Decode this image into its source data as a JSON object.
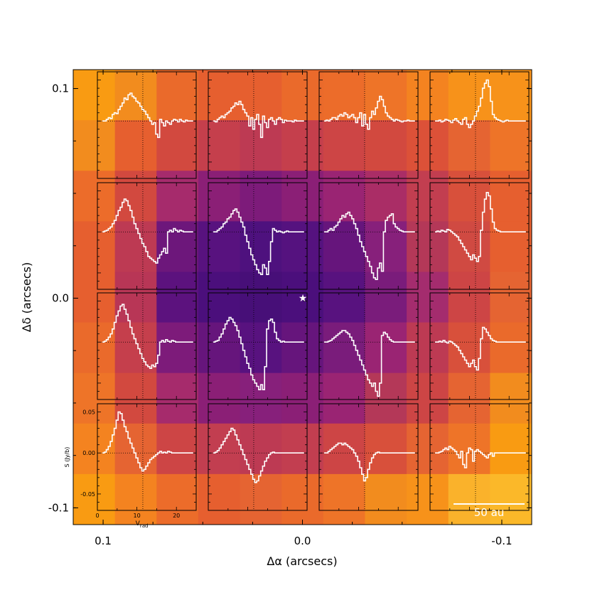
{
  "figure": {
    "xlabel": "Δα (arcsecs)",
    "ylabel": "Δδ (arcsecs)",
    "x_ticks": [
      {
        "value": 0.1,
        "label": "0.1"
      },
      {
        "value": 0.0,
        "label": "0.0"
      },
      {
        "value": -0.1,
        "label": "-0.1"
      }
    ],
    "y_ticks": [
      {
        "value": 0.1,
        "label": "0.1"
      },
      {
        "value": 0.0,
        "label": "0.0"
      },
      {
        "value": -0.1,
        "label": "-0.1"
      }
    ],
    "scale_bar_label": "50 au",
    "star_marker": "★"
  },
  "chart_data": {
    "type": "heatmap",
    "title": "",
    "xlabel": "Δα (arcsecs)",
    "ylabel": "Δδ (arcsecs)",
    "xlim": [
      0.115,
      -0.115
    ],
    "ylim": [
      -0.108,
      0.109
    ],
    "colormap": "inferno",
    "heatmap_colors": [
      [
        "#f99b12",
        "#f28c1e",
        "#ea6a2b",
        "#e65f2f",
        "#e65f2f",
        "#ea6a2b",
        "#ec6c2a",
        "#ee7428",
        "#f48320",
        "#f7921a",
        "#f7921a"
      ],
      [
        "#f28c1e",
        "#e65f2f",
        "#d2493f",
        "#c53f4c",
        "#bd3a53",
        "#c53f4c",
        "#cd4545",
        "#d2493f",
        "#dc5138",
        "#e56432",
        "#ee7428"
      ],
      [
        "#ec6c2a",
        "#d2493f",
        "#a62b6c",
        "#8b1f76",
        "#7d1b7a",
        "#8b1f76",
        "#9a2473",
        "#aa2d66",
        "#c23e50",
        "#d8503b",
        "#e65f2f"
      ],
      [
        "#e65f2f",
        "#bd3a53",
        "#6d177b",
        "#58127f",
        "#4e117e",
        "#55127f",
        "#66157c",
        "#87207b",
        "#b43858",
        "#d04a42",
        "#e65f2f"
      ],
      [
        "#e65f2f",
        "#b83656",
        "#5c127e",
        "#4b0f7c",
        "#470f78",
        "#4b0f7c",
        "#58127f",
        "#7a1c7b",
        "#a42c6e",
        "#cd4545",
        "#e56432"
      ],
      [
        "#ea6a2b",
        "#c53f4c",
        "#7d1b7a",
        "#66157c",
        "#58127f",
        "#66157c",
        "#7a1c7b",
        "#9a2473",
        "#bd3a53",
        "#d8503b",
        "#ea6a2b"
      ],
      [
        "#ee7428",
        "#d2493f",
        "#a62b6c",
        "#8b1f76",
        "#87207b",
        "#8b1f76",
        "#9a2473",
        "#b43858",
        "#cd4545",
        "#e56432",
        "#f28c1e"
      ],
      [
        "#f48320",
        "#e56432",
        "#cd4545",
        "#c23e50",
        "#bd3a53",
        "#c23e50",
        "#cd4545",
        "#d8503b",
        "#e56432",
        "#ee7428",
        "#f99b12"
      ],
      [
        "#f99b12",
        "#f48320",
        "#ec6c2a",
        "#e65f2f",
        "#e56432",
        "#ea6a2b",
        "#ee7428",
        "#f28c1e",
        "#f7921a",
        "#fab22b",
        "#fbb829"
      ]
    ],
    "star_position": [
      0.0,
      0.0
    ],
    "scale_bar": "50 au",
    "inset_spectra": {
      "description_type": "grid of spectra (step)",
      "rows": 4,
      "cols": 4,
      "inset_xlabel": "V$_{rad}$",
      "inset_ylabel": "S (Jy/b)",
      "inset_xlim": [
        0,
        25
      ],
      "inset_ylim": [
        -0.07,
        0.06
      ],
      "inset_xticks": [
        0,
        10,
        20
      ],
      "inset_yticks": [
        0.05,
        0.0,
        -0.05
      ],
      "inset_ytick_labels": [
        "0.05",
        "0.00",
        "-0.05"
      ],
      "inset_xtick_labels": [
        "0",
        "10",
        "20"
      ],
      "systemic_velocity": 11.5,
      "velocity_channels": [
        1.5,
        2.0,
        2.5,
        3.0,
        3.5,
        4.0,
        4.5,
        5.0,
        5.5,
        6.0,
        6.5,
        7.0,
        7.5,
        8.0,
        8.5,
        9.0,
        9.5,
        10.0,
        10.5,
        11.0,
        11.5,
        12.0,
        12.5,
        13.0,
        13.5,
        14.0,
        14.5,
        15.0,
        15.5,
        16.0,
        16.5,
        17.0,
        17.5,
        18.0,
        18.5,
        19.0,
        19.5,
        20.0,
        20.5,
        21.0,
        21.5,
        22.0,
        22.5,
        23.0,
        23.5,
        24.0
      ],
      "spectra": [
        [
          [
            0.0,
            0.0,
            0.002,
            0.004,
            0.003,
            0.008,
            0.01,
            0.009,
            0.014,
            0.018,
            0.022,
            0.028,
            0.026,
            0.032,
            0.034,
            0.03,
            0.028,
            0.024,
            0.022,
            0.018,
            0.014,
            0.012,
            0.008,
            0.004,
            0.0,
            -0.004,
            -0.002,
            -0.016,
            -0.02,
            0.002,
            -0.002,
            -0.006,
            0.0,
            -0.002,
            -0.004,
            0.0,
            0.002,
            0.001,
            -0.001,
            0.002,
            0.0,
            -0.001,
            0.001,
            0.0,
            0.0,
            0.0
          ],
          [
            0.0,
            -0.001,
            0.002,
            0.004,
            0.006,
            0.004,
            0.008,
            0.01,
            0.012,
            0.016,
            0.018,
            0.022,
            0.02,
            0.024,
            0.02,
            0.014,
            0.01,
            0.006,
            -0.006,
            0.004,
            -0.01,
            0.002,
            0.008,
            -0.004,
            -0.02,
            0.006,
            -0.002,
            -0.008,
            0.002,
            0.004,
            0.0,
            -0.004,
            0.002,
            0.004,
            0.002,
            -0.002,
            0.001,
            0.0,
            0.0,
            0.0,
            -0.001,
            0.001,
            0.0,
            0.0,
            0.0,
            0.0
          ],
          [
            0.0,
            0.001,
            0.0,
            0.002,
            0.004,
            0.004,
            0.002,
            0.006,
            0.008,
            0.006,
            0.01,
            0.008,
            0.004,
            0.006,
            0.008,
            0.004,
            -0.002,
            0.004,
            0.01,
            -0.006,
            0.008,
            -0.004,
            -0.01,
            0.004,
            0.012,
            0.008,
            0.016,
            0.024,
            0.03,
            0.026,
            0.018,
            0.01,
            0.006,
            0.004,
            0.002,
            0.0,
            0.002,
            0.001,
            0.0,
            -0.001,
            0.0,
            0.0,
            0.001,
            0.0,
            0.0,
            0.0
          ],
          [
            0.0,
            0.0,
            0.001,
            -0.001,
            0.0,
            0.002,
            0.001,
            0.0,
            -0.002,
            0.001,
            0.003,
            0.0,
            -0.002,
            -0.004,
            0.002,
            0.004,
            -0.004,
            -0.008,
            -0.004,
            0.0,
            0.006,
            0.012,
            0.018,
            0.028,
            0.04,
            0.046,
            0.05,
            0.042,
            0.024,
            0.008,
            0.004,
            0.002,
            0.001,
            0.0,
            -0.001,
            0.0,
            0.001,
            0.0,
            0.0,
            0.0,
            0.0,
            0.0,
            0.0,
            0.0,
            0.0,
            0.0
          ]
        ],
        [
          [
            0.0,
            0.001,
            0.002,
            0.004,
            0.006,
            0.01,
            0.014,
            0.02,
            0.026,
            0.03,
            0.036,
            0.04,
            0.038,
            0.032,
            0.026,
            0.018,
            0.01,
            0.004,
            -0.002,
            -0.008,
            -0.014,
            -0.018,
            -0.024,
            -0.03,
            -0.032,
            -0.034,
            -0.036,
            -0.038,
            -0.032,
            -0.028,
            -0.024,
            -0.02,
            -0.026,
            0.0,
            0.002,
            0.0,
            0.004,
            0.002,
            0.0,
            0.002,
            0.001,
            0.0,
            0.0,
            0.0,
            0.0,
            0.0
          ],
          [
            0.0,
            0.0,
            0.002,
            0.004,
            0.006,
            0.01,
            0.012,
            0.016,
            0.018,
            0.022,
            0.026,
            0.028,
            0.024,
            0.018,
            0.012,
            0.006,
            -0.004,
            -0.012,
            -0.02,
            -0.028,
            -0.034,
            -0.04,
            -0.046,
            -0.05,
            -0.052,
            -0.04,
            -0.044,
            -0.052,
            -0.036,
            -0.012,
            0.004,
            0.002,
            0.0,
            0.001,
            0.0,
            -0.001,
            0.0,
            0.001,
            0.0,
            0.0,
            0.0,
            0.0,
            0.0,
            0.0,
            0.0,
            0.0
          ],
          [
            0.0,
            0.0,
            0.002,
            0.004,
            0.002,
            0.006,
            0.008,
            0.012,
            0.016,
            0.02,
            0.018,
            0.022,
            0.024,
            0.02,
            0.016,
            0.01,
            0.004,
            -0.004,
            -0.012,
            -0.018,
            -0.024,
            -0.03,
            -0.036,
            -0.042,
            -0.05,
            -0.056,
            -0.058,
            -0.044,
            -0.038,
            -0.048,
            0.0,
            0.014,
            0.018,
            0.02,
            0.022,
            0.01,
            0.006,
            0.004,
            0.002,
            0.001,
            0.0,
            0.0,
            0.0,
            0.0,
            0.0,
            0.0
          ],
          [
            0.0,
            0.001,
            0.0,
            0.002,
            0.001,
            0.0,
            0.003,
            0.002,
            0.0,
            -0.002,
            -0.004,
            -0.006,
            -0.01,
            -0.014,
            -0.018,
            -0.022,
            -0.026,
            -0.03,
            -0.034,
            -0.028,
            -0.032,
            -0.036,
            -0.03,
            0.002,
            0.024,
            0.04,
            0.048,
            0.044,
            0.028,
            0.012,
            0.004,
            0.002,
            0.001,
            0.0,
            0.0,
            0.0,
            0.0,
            0.0,
            0.0,
            0.0,
            0.0,
            0.0,
            0.0,
            0.0,
            0.0,
            0.0
          ]
        ],
        [
          [
            0.0,
            0.001,
            0.003,
            0.006,
            0.01,
            0.016,
            0.024,
            0.032,
            0.038,
            0.044,
            0.046,
            0.04,
            0.034,
            0.026,
            0.018,
            0.01,
            0.004,
            -0.002,
            -0.008,
            -0.014,
            -0.02,
            -0.024,
            -0.028,
            -0.03,
            -0.032,
            -0.028,
            -0.03,
            -0.026,
            -0.016,
            0.0,
            0.002,
            0.0,
            0.003,
            0.001,
            0.0,
            0.002,
            0.001,
            0.0,
            0.0,
            0.0,
            0.0,
            0.0,
            0.0,
            0.0,
            0.0,
            0.0
          ],
          [
            0.0,
            0.001,
            0.002,
            0.006,
            0.01,
            0.016,
            0.022,
            0.026,
            0.03,
            0.028,
            0.024,
            0.02,
            0.014,
            0.006,
            -0.002,
            -0.01,
            -0.018,
            -0.026,
            -0.032,
            -0.04,
            -0.046,
            -0.05,
            -0.054,
            -0.058,
            -0.052,
            -0.058,
            -0.03,
            0.016,
            0.026,
            0.028,
            0.024,
            0.012,
            0.004,
            0.002,
            0.0,
            0.001,
            0.0,
            0.0,
            0.0,
            0.0,
            0.0,
            0.0,
            0.0,
            0.0,
            0.0,
            0.0
          ],
          [
            0.0,
            0.0,
            0.001,
            0.002,
            0.004,
            0.006,
            0.008,
            0.01,
            0.012,
            0.014,
            0.014,
            0.012,
            0.01,
            0.006,
            0.002,
            -0.004,
            -0.01,
            -0.016,
            -0.022,
            -0.028,
            -0.034,
            -0.04,
            -0.046,
            -0.05,
            -0.054,
            -0.05,
            -0.06,
            -0.066,
            -0.05,
            0.008,
            0.012,
            0.01,
            0.006,
            0.003,
            0.001,
            0.0,
            0.0,
            0.0,
            0.0,
            0.0,
            0.0,
            0.0,
            0.0,
            0.0,
            0.0,
            0.0
          ],
          [
            0.0,
            0.0,
            0.001,
            0.0,
            0.002,
            0.0,
            -0.001,
            0.001,
            0.0,
            -0.002,
            -0.004,
            -0.006,
            -0.01,
            -0.014,
            -0.018,
            -0.022,
            -0.026,
            -0.03,
            -0.026,
            -0.022,
            -0.03,
            -0.034,
            -0.02,
            0.004,
            0.018,
            0.016,
            0.012,
            0.008,
            0.004,
            0.002,
            0.001,
            0.0,
            0.0,
            0.0,
            0.0,
            0.0,
            0.0,
            0.0,
            0.0,
            0.0,
            0.0,
            0.0,
            0.0,
            0.0,
            0.0,
            0.0
          ]
        ],
        [
          [
            0.0,
            0.001,
            0.004,
            0.008,
            0.014,
            0.022,
            0.03,
            0.04,
            0.05,
            0.048,
            0.04,
            0.032,
            0.026,
            0.018,
            0.012,
            0.006,
            0.0,
            -0.006,
            -0.012,
            -0.018,
            -0.022,
            -0.02,
            -0.016,
            -0.012,
            -0.008,
            -0.006,
            -0.004,
            -0.002,
            0.0,
            0.002,
            0.0,
            0.001,
            0.0,
            0.002,
            0.001,
            0.0,
            0.0,
            0.0,
            0.0,
            0.0,
            0.0,
            0.0,
            0.0,
            0.0,
            0.0,
            0.0
          ],
          [
            0.0,
            0.001,
            0.003,
            0.006,
            0.01,
            0.014,
            0.018,
            0.022,
            0.026,
            0.03,
            0.028,
            0.022,
            0.016,
            0.01,
            0.004,
            -0.002,
            -0.008,
            -0.014,
            -0.02,
            -0.026,
            -0.032,
            -0.036,
            -0.034,
            -0.028,
            -0.022,
            -0.016,
            -0.01,
            -0.006,
            -0.002,
            0.0,
            0.001,
            0.0,
            0.0,
            0.0,
            0.0,
            0.0,
            0.0,
            0.0,
            0.0,
            0.0,
            0.0,
            0.0,
            0.0,
            0.0,
            0.0,
            0.0
          ],
          [
            0.0,
            0.0,
            0.002,
            0.004,
            0.006,
            0.008,
            0.01,
            0.012,
            0.012,
            0.01,
            0.012,
            0.01,
            0.008,
            0.006,
            0.004,
            0.0,
            -0.004,
            -0.01,
            -0.018,
            -0.026,
            -0.034,
            -0.03,
            -0.02,
            -0.012,
            -0.006,
            -0.002,
            0.0,
            0.001,
            0.0,
            0.0,
            0.0,
            0.0,
            0.0,
            0.0,
            0.0,
            0.0,
            0.0,
            0.0,
            0.0,
            0.0,
            0.0,
            0.0,
            0.0,
            0.0,
            0.0,
            0.0
          ],
          [
            0.0,
            0.0,
            0.001,
            0.002,
            0.004,
            0.006,
            0.004,
            0.008,
            0.006,
            0.004,
            0.002,
            -0.002,
            -0.006,
            0.002,
            -0.014,
            -0.018,
            0.0,
            0.006,
            0.004,
            -0.01,
            0.002,
            0.004,
            0.002,
            0.0,
            -0.002,
            -0.004,
            -0.006,
            -0.002,
            0.0,
            -0.004,
            0.0,
            0.0,
            0.0,
            0.0,
            0.0,
            0.0,
            0.0,
            0.0,
            0.0,
            0.0,
            0.0,
            0.0,
            0.0,
            0.0,
            0.0,
            0.0
          ]
        ]
      ]
    }
  }
}
